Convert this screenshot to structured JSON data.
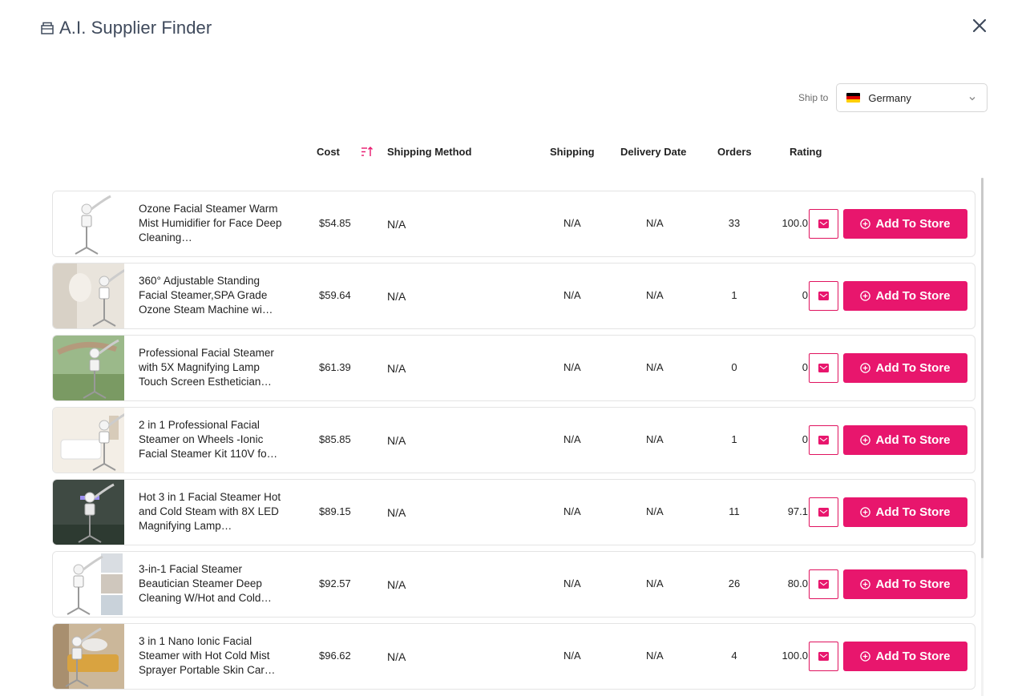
{
  "app": {
    "title": "A.I. Supplier Finder"
  },
  "ship_to": {
    "label": "Ship to",
    "country": "Germany"
  },
  "columns": {
    "cost": "Cost",
    "shipping_method": "Shipping Method",
    "shipping": "Shipping",
    "delivery_date": "Delivery Date",
    "orders": "Orders",
    "rating": "Rating"
  },
  "colors": {
    "accent": "#e8166d",
    "title": "#3f4a5c"
  },
  "add_label": "Add To Store",
  "products": [
    {
      "name": "Ozone Facial Steamer Warm Mist Humidifier for Face Deep Cleaning…",
      "cost": "$54.85",
      "method": "N/A",
      "shipping": "N/A",
      "delivery": "N/A",
      "orders": "33",
      "rating": "100.0",
      "scene": "white"
    },
    {
      "name": "360° Adjustable Standing Facial Steamer,SPA Grade Ozone Steam Machine wi…",
      "cost": "$59.64",
      "method": "N/A",
      "shipping": "N/A",
      "delivery": "N/A",
      "orders": "1",
      "rating": "0",
      "scene": "room"
    },
    {
      "name": "Professional Facial Steamer with 5X Magnifying Lamp Touch Screen Esthetician…",
      "cost": "$61.39",
      "method": "N/A",
      "shipping": "N/A",
      "delivery": "N/A",
      "orders": "0",
      "rating": "0",
      "scene": "garden"
    },
    {
      "name": "2 in 1 Professional Facial Steamer on Wheels -Ionic Facial Steamer Kit 110V fo…",
      "cost": "$85.85",
      "method": "N/A",
      "shipping": "N/A",
      "delivery": "N/A",
      "orders": "1",
      "rating": "0",
      "scene": "spa"
    },
    {
      "name": "Hot 3 in 1 Facial Steamer Hot and Cold Steam with 8X LED Magnifying Lamp…",
      "cost": "$89.15",
      "method": "N/A",
      "shipping": "N/A",
      "delivery": "N/A",
      "orders": "11",
      "rating": "97.1",
      "scene": "dark"
    },
    {
      "name": "3-in-1 Facial Steamer Beautician Steamer Deep Cleaning W/Hot and Cold…",
      "cost": "$92.57",
      "method": "N/A",
      "shipping": "N/A",
      "delivery": "N/A",
      "orders": "26",
      "rating": "80.0",
      "scene": "collage"
    },
    {
      "name": "3 in 1 Nano Ionic Facial Steamer with Hot Cold Mist Sprayer Portable Skin Car…",
      "cost": "$96.62",
      "method": "N/A",
      "shipping": "N/A",
      "delivery": "N/A",
      "orders": "4",
      "rating": "100.0",
      "scene": "bed"
    }
  ]
}
